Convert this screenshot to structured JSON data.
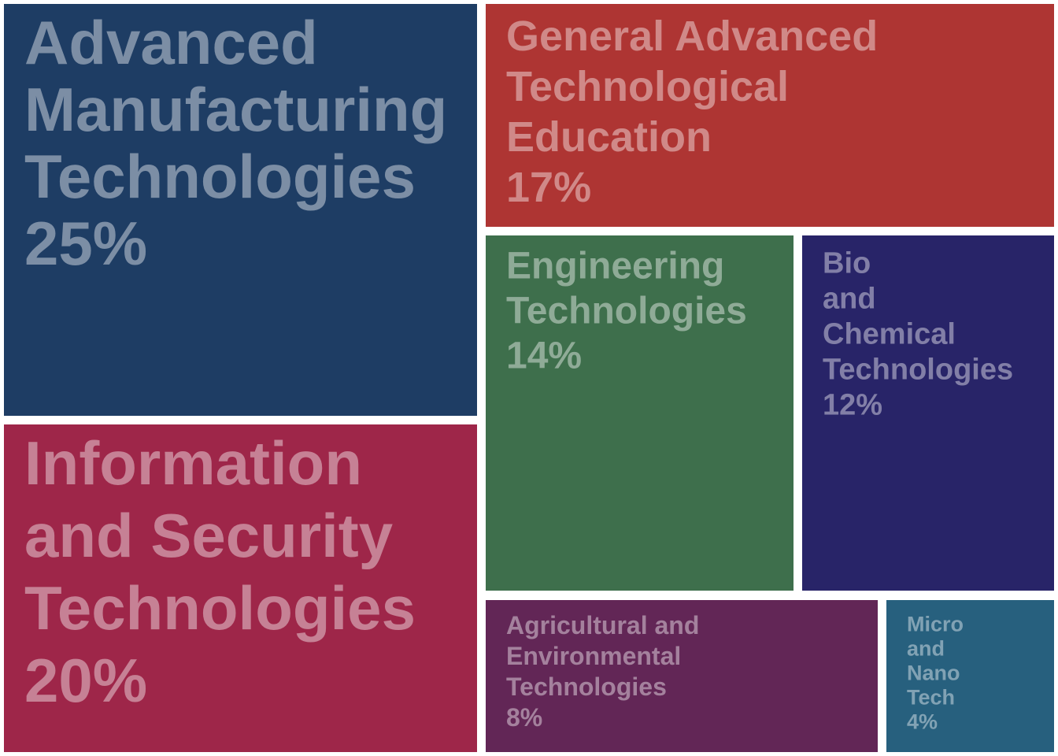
{
  "chart_data": {
    "type": "treemap",
    "categories": [
      "Advanced Manufacturing Technologies",
      "Information and Security Technologies",
      "General Advanced Technological Education",
      "Engineering Technologies",
      "Bio and Chemical Technologies",
      "Agricultural and Environmental Technologies",
      "Micro and Nano Tech"
    ],
    "values": [
      25,
      20,
      17,
      14,
      12,
      8,
      4
    ],
    "value_labels": [
      "25%",
      "20%",
      "17%",
      "14%",
      "12%",
      "8%",
      "4%"
    ],
    "colors": [
      "#1e3d64",
      "#9e2649",
      "#ae3533",
      "#3e6f4c",
      "#282468",
      "#622656",
      "#27607e"
    ]
  }
}
